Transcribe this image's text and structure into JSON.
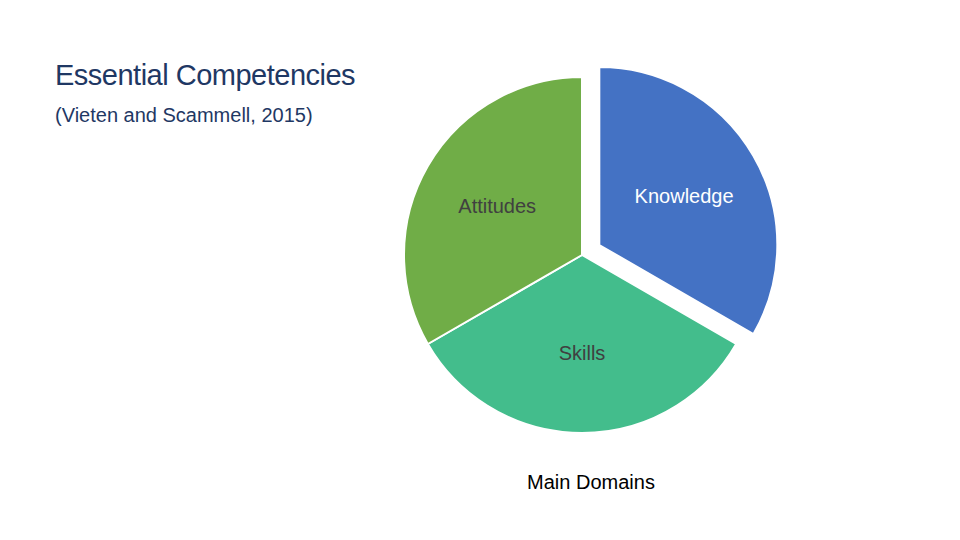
{
  "chart_data": {
    "type": "pie",
    "title": "Essential Competencies",
    "subtitle": "(Vieten and Scammell, 2015)",
    "xlabel": "Main Domains",
    "categories": [
      "Knowledge",
      "Skills",
      "Attitudes"
    ],
    "values": [
      33.3,
      33.3,
      33.3
    ],
    "colors": [
      "#4472c4",
      "#43bd8c",
      "#70ad47"
    ]
  }
}
